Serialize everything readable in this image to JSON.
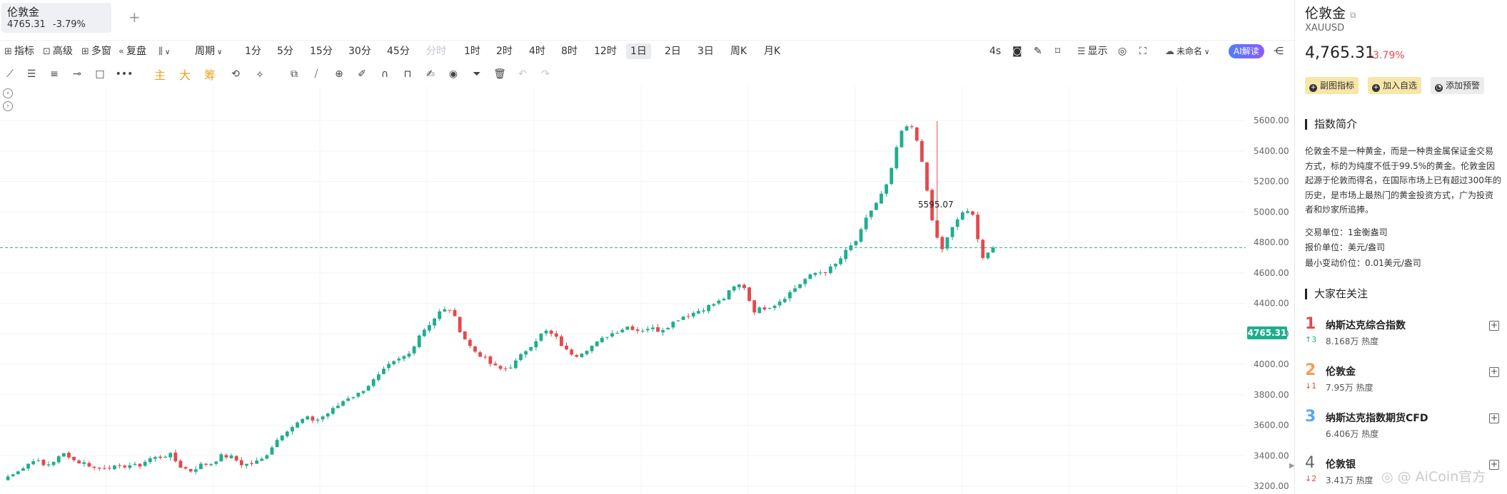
{
  "tab": {
    "name": "伦敦金",
    "price": "4765.31",
    "change": "-3.79%",
    "add": "+"
  },
  "toolbar": {
    "indicator": "指标",
    "advanced": "高级",
    "multi": "多窗",
    "replay": "复盘",
    "chart_type": "⌇⌇",
    "period": "周期",
    "intervals": [
      "1分",
      "5分",
      "15分",
      "30分",
      "45分",
      "分时",
      "1时",
      "2时",
      "4时",
      "8时",
      "12时",
      "1日",
      "2日",
      "3日",
      "周K",
      "月K"
    ],
    "active_interval": "1日",
    "refresh": "4s",
    "display": "显示",
    "unnamed": "未命名",
    "ai": "AI解读"
  },
  "drawbar": {
    "main": "主",
    "big": "大",
    "chip": "筹"
  },
  "chart": {
    "last_price": "4765.31",
    "max_label": "5595.07",
    "y_ticks": [
      "5600.00",
      "5400.00",
      "5200.00",
      "5000.00",
      "4800.00",
      "4600.00",
      "4400.00",
      "4200.00",
      "4000.00",
      "3800.00",
      "3600.00",
      "3400.00",
      "3200.00"
    ],
    "up_color": "#1fae8c",
    "down_color": "#e5484d"
  },
  "chart_data": {
    "type": "candlestick",
    "interval": "1日",
    "y_range": [
      3200,
      5600
    ],
    "high": 5595.07,
    "last": 4765.31,
    "approx_close_path": [
      3235,
      3290,
      3320,
      3380,
      3330,
      3370,
      3420,
      3360,
      3350,
      3310,
      3330,
      3320,
      3340,
      3330,
      3380,
      3390,
      3410,
      3330,
      3300,
      3340,
      3350,
      3400,
      3390,
      3340,
      3350,
      3380,
      3480,
      3560,
      3600,
      3650,
      3630,
      3670,
      3720,
      3780,
      3800,
      3860,
      3920,
      3990,
      4030,
      4070,
      4200,
      4270,
      4350,
      4360,
      4200,
      4100,
      4050,
      3990,
      3960,
      4000,
      4080,
      4150,
      4220,
      4180,
      4090,
      4060,
      4100,
      4140,
      4190,
      4220,
      4250,
      4220,
      4240,
      4220,
      4260,
      4310,
      4330,
      4360,
      4390,
      4420,
      4500,
      4530,
      4350,
      4370,
      4390,
      4440,
      4500,
      4560,
      4600,
      4610,
      4660,
      4750,
      4820,
      4980,
      5080,
      5200,
      5500,
      5580,
      5420,
      4980,
      4740,
      4880,
      5000,
      4990,
      4700,
      4765.31
    ]
  },
  "side": {
    "name": "伦敦金",
    "code": "XAUUSD",
    "price": "4,765.31",
    "change": "-3.79%",
    "actions": [
      "副图指标",
      "加入自选",
      "添加预警"
    ],
    "intro_title": "指数简介",
    "intro_text": "伦敦金不是一种黄金，而是一种贵金属保证金交易方式，标的为纯度不低于99.5%的黄金。伦敦金因起源于伦敦而得名，在国际市场上已有超过300年的历史，是市场上最热门的黄金投资方式，广为投资者和炒家所追捧。",
    "info": [
      "交易单位：1金衡盎司",
      "报价单位：美元/盎司",
      "最小变动价位：0.01美元/盎司"
    ],
    "hot_title": "大家在关注",
    "hot": [
      {
        "rank": "1",
        "delta": "↑3",
        "name": "纳斯达克综合指数",
        "heat": "8.168万 热度",
        "color": "#e5484d"
      },
      {
        "rank": "2",
        "delta": "↓1",
        "name": "伦敦金",
        "heat": "7.95万 热度",
        "color": "#f0a050"
      },
      {
        "rank": "3",
        "delta": "",
        "name": "纳斯达克指数期货CFD",
        "heat": "6.406万 热度",
        "color": "#5aa8f0"
      },
      {
        "rank": "4",
        "delta": "↓2",
        "name": "伦敦银",
        "heat": "3.41万 热度",
        "color": "#666666"
      }
    ],
    "watermark": "AiCoin官方"
  }
}
